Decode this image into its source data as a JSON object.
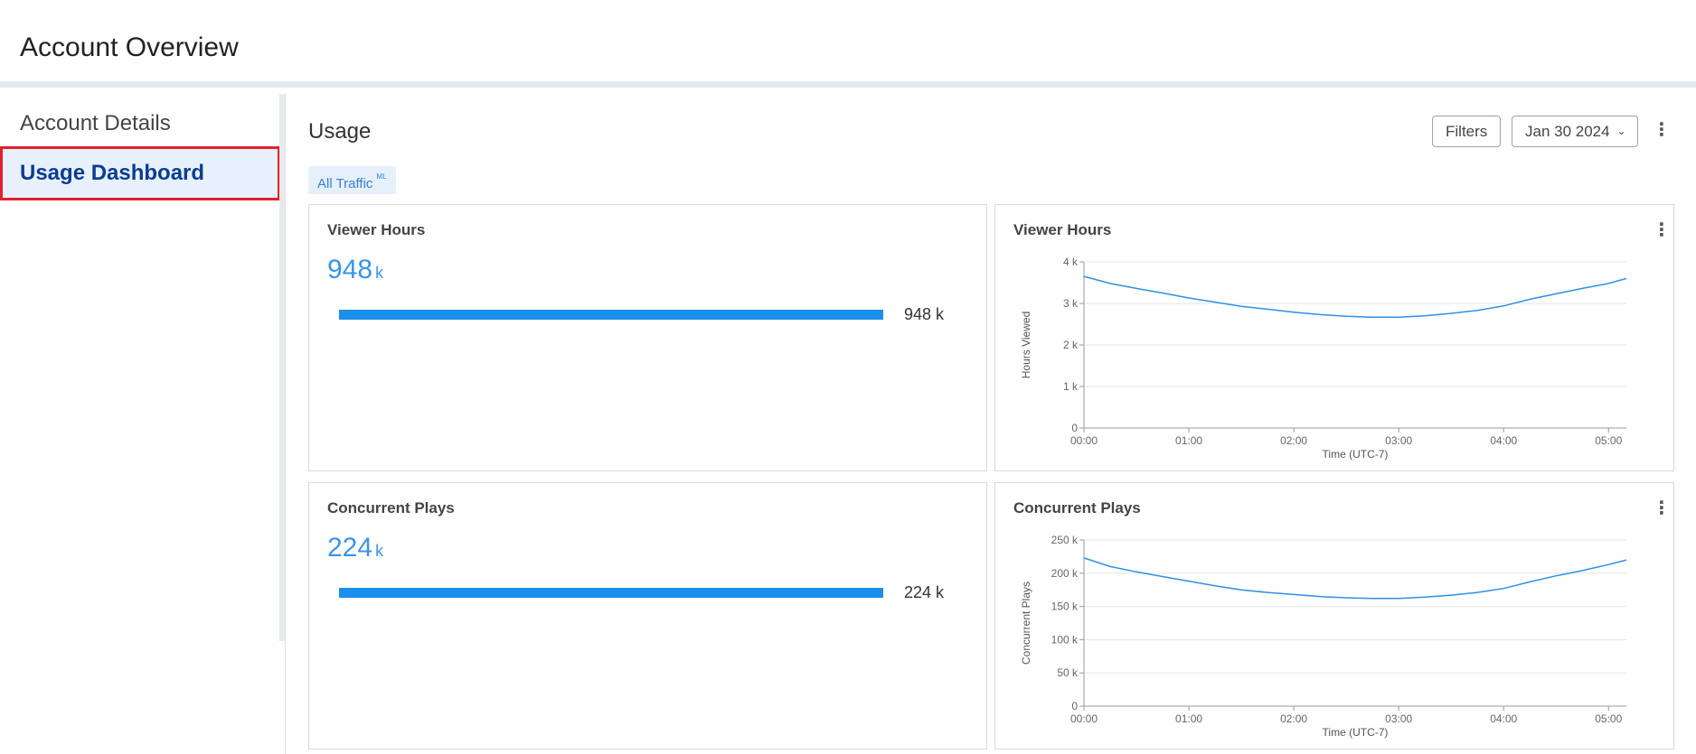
{
  "header": {
    "title": "Account Overview"
  },
  "sidebar": {
    "items": [
      {
        "label": "Account Details"
      },
      {
        "label": "Usage Dashboard"
      }
    ]
  },
  "main": {
    "title": "Usage",
    "filters_label": "Filters",
    "date_label": "Jan 30 2024",
    "tag": {
      "label": "All Traffic",
      "sup": "ML"
    }
  },
  "cards": {
    "viewer_hours_summary": {
      "title": "Viewer Hours",
      "value": "948",
      "unit": "k",
      "bar_label": "948 k",
      "bar_fraction": 1.0
    },
    "concurrent_summary": {
      "title": "Concurrent Plays",
      "value": "224",
      "unit": "k",
      "bar_label": "224 k",
      "bar_fraction": 1.0
    },
    "viewer_hours_chart": {
      "title": "Viewer Hours"
    },
    "concurrent_chart": {
      "title": "Concurrent Plays"
    }
  },
  "chart_data": [
    {
      "type": "line",
      "title": "Viewer Hours",
      "xlabel": "Time (UTC-7)",
      "ylabel": "Hours Viewed",
      "x_ticks": [
        "00:00",
        "01:00",
        "02:00",
        "03:00",
        "04:00",
        "05:00"
      ],
      "y_ticks": [
        "0",
        "1 k",
        "2 k",
        "3 k",
        "4 k"
      ],
      "ylim": [
        0,
        4000
      ],
      "xlim_hours": [
        0,
        5.17
      ],
      "grid": true,
      "series": [
        {
          "color": "#2e90e6",
          "x_hours": [
            0,
            0.25,
            0.5,
            0.75,
            1.0,
            1.25,
            1.5,
            1.75,
            2.0,
            2.25,
            2.5,
            2.75,
            3.0,
            3.25,
            3.5,
            3.75,
            4.0,
            4.25,
            4.5,
            4.75,
            5.0,
            5.17
          ],
          "values": [
            3650,
            3480,
            3360,
            3250,
            3130,
            3030,
            2930,
            2860,
            2790,
            2730,
            2690,
            2670,
            2670,
            2700,
            2760,
            2830,
            2940,
            3100,
            3230,
            3360,
            3480,
            3600
          ]
        }
      ]
    },
    {
      "type": "line",
      "title": "Concurrent Plays",
      "xlabel": "Time (UTC-7)",
      "ylabel": "Concurrent Plays",
      "x_ticks": [
        "00:00",
        "01:00",
        "02:00",
        "03:00",
        "04:00",
        "05:00"
      ],
      "y_ticks": [
        "0",
        "50 k",
        "100 k",
        "150 k",
        "200 k",
        "250 k"
      ],
      "ylim": [
        0,
        250000
      ],
      "xlim_hours": [
        0,
        5.17
      ],
      "grid": true,
      "series": [
        {
          "color": "#2e90e6",
          "x_hours": [
            0,
            0.25,
            0.5,
            0.75,
            1.0,
            1.25,
            1.5,
            1.75,
            2.0,
            2.25,
            2.5,
            2.75,
            3.0,
            3.25,
            3.5,
            3.75,
            4.0,
            4.25,
            4.5,
            4.75,
            5.0,
            5.17
          ],
          "values": [
            223000,
            210000,
            202000,
            195000,
            188000,
            181000,
            175000,
            171000,
            168000,
            165000,
            163000,
            162000,
            162000,
            164000,
            167000,
            171000,
            177000,
            187000,
            196000,
            204000,
            213000,
            220000
          ]
        }
      ]
    }
  ]
}
